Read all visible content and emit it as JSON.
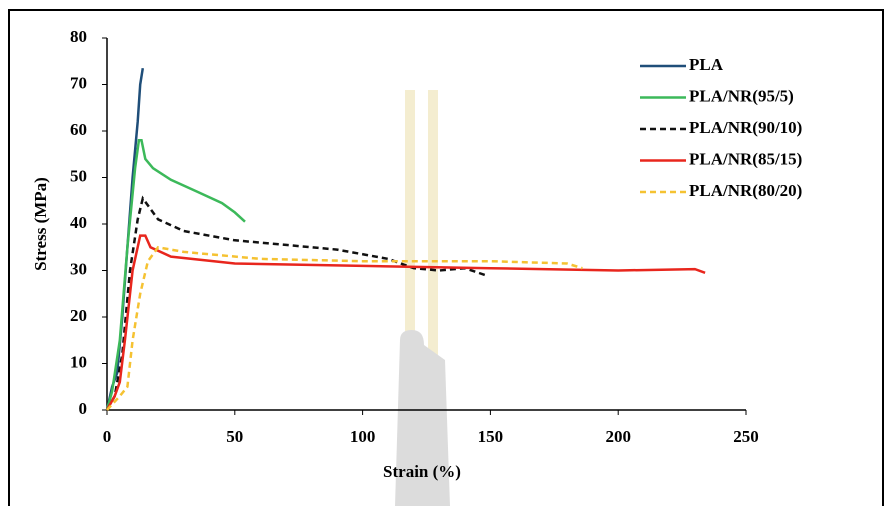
{
  "chart_data": {
    "type": "line",
    "xlabel": "Strain (%)",
    "ylabel": "Stress (MPa)",
    "xlim": [
      0,
      250
    ],
    "xticks": [
      0,
      50,
      100,
      150,
      200,
      250
    ],
    "ylim": [
      0,
      80
    ],
    "yticks": [
      0,
      10,
      20,
      30,
      40,
      50,
      60,
      70,
      80
    ],
    "grid": false,
    "legend": "upper right",
    "series": [
      {
        "name": "PLA",
        "color": "#1f4e79",
        "linestyle": "solid",
        "x": [
          0,
          2,
          4,
          6,
          8,
          10,
          12,
          13,
          14
        ],
        "values": [
          0,
          5,
          8,
          20,
          35,
          50,
          62,
          70,
          73.5
        ]
      },
      {
        "name": "PLA/NR(95/5)",
        "color": "#3cb95a",
        "linestyle": "solid",
        "x": [
          0,
          2,
          5,
          8,
          11,
          12.5,
          13.5,
          15,
          18,
          25,
          35,
          45,
          50,
          54
        ],
        "values": [
          0,
          4,
          15,
          35,
          52,
          58,
          58,
          54,
          52,
          49.5,
          47,
          44.5,
          42.5,
          40.5
        ]
      },
      {
        "name": "PLA/NR(90/10)",
        "color": "#111111",
        "linestyle": "dashed",
        "x": [
          0,
          3,
          6,
          9,
          12,
          14,
          16,
          20,
          30,
          50,
          70,
          90,
          110,
          120,
          130,
          140,
          148
        ],
        "values": [
          0,
          3,
          12,
          30,
          41,
          45.5,
          44,
          41,
          38.5,
          36.5,
          35.5,
          34.5,
          32.5,
          30.5,
          30,
          30.5,
          29
        ]
      },
      {
        "name": "PLA/NR(85/15)",
        "color": "#e8261d",
        "linestyle": "solid",
        "x": [
          0,
          3,
          5,
          7,
          10,
          13,
          15,
          17,
          25,
          50,
          100,
          150,
          200,
          230,
          234
        ],
        "values": [
          0,
          3,
          6,
          15,
          30,
          37.5,
          37.5,
          35,
          33,
          31.5,
          31,
          30.5,
          30,
          30.3,
          29.5
        ]
      },
      {
        "name": "PLA/NR(80/20)",
        "color": "#f5c232",
        "linestyle": "dashed",
        "x": [
          0,
          5,
          8,
          10,
          13,
          16,
          20,
          30,
          60,
          100,
          150,
          180,
          186
        ],
        "values": [
          0,
          3,
          5,
          15,
          25,
          32,
          35,
          34,
          32.5,
          32,
          32,
          31.5,
          30.5
        ]
      }
    ]
  }
}
